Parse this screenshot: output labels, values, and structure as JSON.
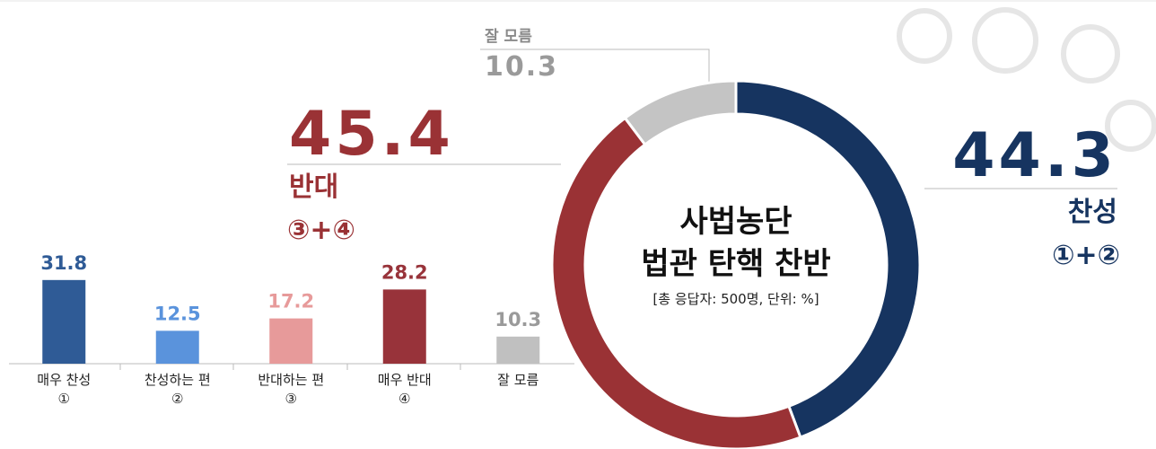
{
  "chart_data": [
    {
      "type": "bar",
      "categories": [
        "매우 찬성",
        "찬성하는 편",
        "반대하는 편",
        "매우 반대",
        "잘 모름"
      ],
      "category_markers": [
        "①",
        "②",
        "③",
        "④",
        null
      ],
      "values": [
        31.8,
        12.5,
        17.2,
        28.2,
        10.3
      ],
      "colors": [
        "#2f5b96",
        "#5a93dc",
        "#e79a9a",
        "#98333a",
        "#c0c0c0"
      ]
    },
    {
      "type": "donut",
      "title": [
        "사법농단",
        "법관 탄핵 찬반"
      ],
      "subtitle": "[총 응답자: 500명, 단위: %]",
      "categories": [
        "찬성",
        "반대",
        "잘 모름"
      ],
      "category_markers": [
        "①+②",
        "③+④",
        null
      ],
      "values": [
        44.3,
        45.4,
        10.3
      ],
      "colors": [
        "#163460",
        "#9a3235",
        "#c4c4c4"
      ]
    }
  ]
}
